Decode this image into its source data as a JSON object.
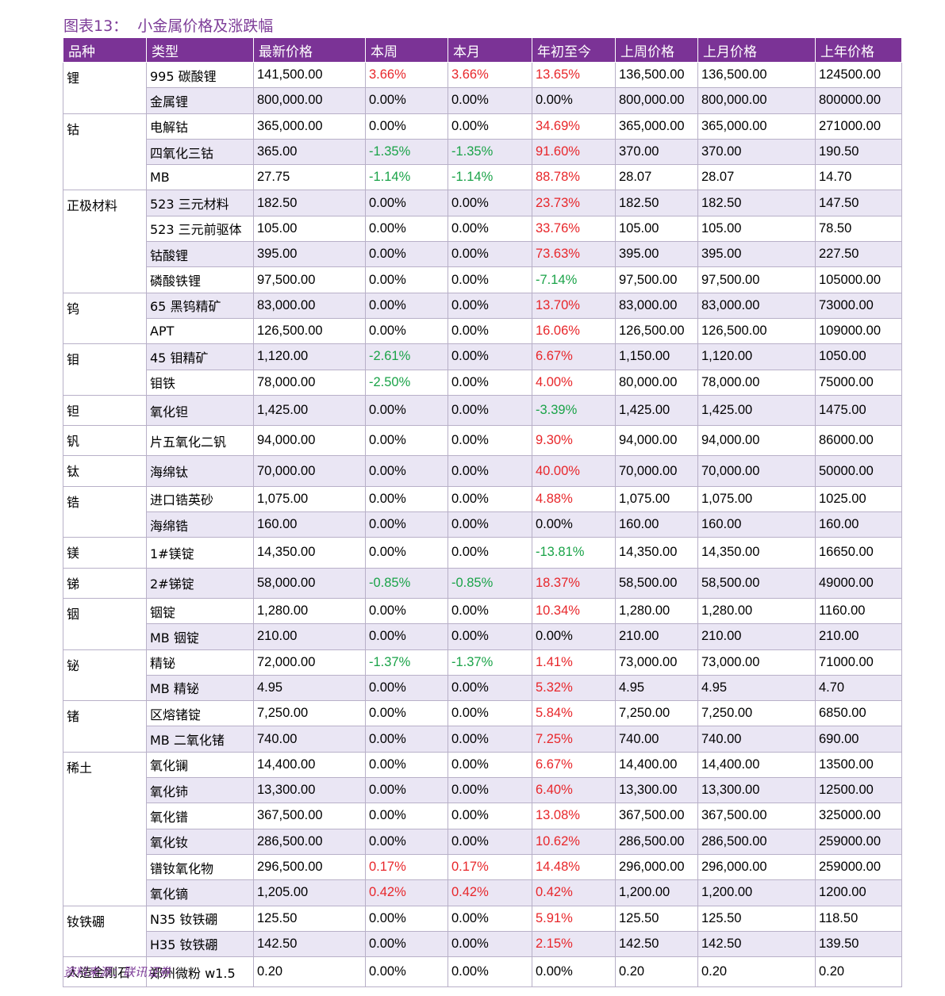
{
  "title": "图表13：  小金属价格及涨跌幅",
  "source": "资料来源：联讯证券",
  "headers": [
    "品种",
    "类型",
    "最新价格",
    "本周",
    "本月",
    "年初至今",
    "上周价格",
    "上月价格",
    "上年价格"
  ],
  "colors": {
    "header_bg": "#7b3396",
    "up": "#e8262a",
    "down": "#1aa348",
    "alt_row": "#eae6f4"
  },
  "groups": [
    {
      "category": "锂",
      "rows": [
        [
          "995 碳酸锂",
          "141,500.00",
          "3.66%",
          "3.66%",
          "13.65%",
          "136,500.00",
          "136,500.00",
          "124500.00"
        ],
        [
          "金属锂",
          "800,000.00",
          "0.00%",
          "0.00%",
          "0.00%",
          "800,000.00",
          "800,000.00",
          "800000.00"
        ]
      ]
    },
    {
      "category": "钴",
      "rows": [
        [
          "电解钴",
          "365,000.00",
          "0.00%",
          "0.00%",
          "34.69%",
          "365,000.00",
          "365,000.00",
          "271000.00"
        ],
        [
          "四氧化三钴",
          "365.00",
          "-1.35%",
          "-1.35%",
          "91.60%",
          "370.00",
          "370.00",
          "190.50"
        ],
        [
          "MB",
          "27.75",
          "-1.14%",
          "-1.14%",
          "88.78%",
          "28.07",
          "28.07",
          "14.70"
        ]
      ]
    },
    {
      "category": "正极材料",
      "rows": [
        [
          "523 三元材料",
          "182.50",
          "0.00%",
          "0.00%",
          "23.73%",
          "182.50",
          "182.50",
          "147.50"
        ],
        [
          "523 三元前驱体",
          "105.00",
          "0.00%",
          "0.00%",
          "33.76%",
          "105.00",
          "105.00",
          "78.50"
        ],
        [
          "钴酸锂",
          "395.00",
          "0.00%",
          "0.00%",
          "73.63%",
          "395.00",
          "395.00",
          "227.50"
        ],
        [
          "磷酸铁锂",
          "97,500.00",
          "0.00%",
          "0.00%",
          "-7.14%",
          "97,500.00",
          "97,500.00",
          "105000.00"
        ]
      ]
    },
    {
      "category": "钨",
      "rows": [
        [
          "65 黑钨精矿",
          "83,000.00",
          "0.00%",
          "0.00%",
          "13.70%",
          "83,000.00",
          "83,000.00",
          "73000.00"
        ],
        [
          "APT",
          "126,500.00",
          "0.00%",
          "0.00%",
          "16.06%",
          "126,500.00",
          "126,500.00",
          "109000.00"
        ]
      ]
    },
    {
      "category": "钼",
      "rows": [
        [
          "45 钼精矿",
          "1,120.00",
          "-2.61%",
          "0.00%",
          "6.67%",
          "1,150.00",
          "1,120.00",
          "1050.00"
        ],
        [
          "钼铁",
          "78,000.00",
          "-2.50%",
          "0.00%",
          "4.00%",
          "80,000.00",
          "78,000.00",
          "75000.00"
        ]
      ]
    },
    {
      "category": "钽",
      "rows": [
        [
          "氧化钽",
          "1,425.00",
          "0.00%",
          "0.00%",
          "-3.39%",
          "1,425.00",
          "1,425.00",
          "1475.00"
        ]
      ]
    },
    {
      "category": "钒",
      "rows": [
        [
          "片五氧化二钒",
          "94,000.00",
          "0.00%",
          "0.00%",
          "9.30%",
          "94,000.00",
          "94,000.00",
          "86000.00"
        ]
      ]
    },
    {
      "category": "钛",
      "rows": [
        [
          "海绵钛",
          "70,000.00",
          "0.00%",
          "0.00%",
          "40.00%",
          "70,000.00",
          "70,000.00",
          "50000.00"
        ]
      ]
    },
    {
      "category": "锆",
      "rows": [
        [
          "进口锆英砂",
          "1,075.00",
          "0.00%",
          "0.00%",
          "4.88%",
          "1,075.00",
          "1,075.00",
          "1025.00"
        ],
        [
          "海绵锆",
          "160.00",
          "0.00%",
          "0.00%",
          "0.00%",
          "160.00",
          "160.00",
          "160.00"
        ]
      ]
    },
    {
      "category": "镁",
      "rows": [
        [
          "1#镁锭",
          "14,350.00",
          "0.00%",
          "0.00%",
          "-13.81%",
          "14,350.00",
          "14,350.00",
          "16650.00"
        ]
      ]
    },
    {
      "category": "锑",
      "rows": [
        [
          "2#锑锭",
          "58,000.00",
          "-0.85%",
          "-0.85%",
          "18.37%",
          "58,500.00",
          "58,500.00",
          "49000.00"
        ]
      ]
    },
    {
      "category": "铟",
      "rows": [
        [
          "铟锭",
          "1,280.00",
          "0.00%",
          "0.00%",
          "10.34%",
          "1,280.00",
          "1,280.00",
          "1160.00"
        ],
        [
          "MB 铟锭",
          "210.00",
          "0.00%",
          "0.00%",
          "0.00%",
          "210.00",
          "210.00",
          "210.00"
        ]
      ]
    },
    {
      "category": "铋",
      "rows": [
        [
          "精铋",
          "72,000.00",
          "-1.37%",
          "-1.37%",
          "1.41%",
          "73,000.00",
          "73,000.00",
          "71000.00"
        ],
        [
          "MB 精铋",
          "4.95",
          "0.00%",
          "0.00%",
          "5.32%",
          "4.95",
          "4.95",
          "4.70"
        ]
      ]
    },
    {
      "category": "锗",
      "rows": [
        [
          "区熔锗锭",
          "7,250.00",
          "0.00%",
          "0.00%",
          "5.84%",
          "7,250.00",
          "7,250.00",
          "6850.00"
        ],
        [
          "MB 二氧化锗",
          "740.00",
          "0.00%",
          "0.00%",
          "7.25%",
          "740.00",
          "740.00",
          "690.00"
        ]
      ]
    },
    {
      "category": "稀土",
      "rows": [
        [
          "氧化镧",
          "14,400.00",
          "0.00%",
          "0.00%",
          "6.67%",
          "14,400.00",
          "14,400.00",
          "13500.00"
        ],
        [
          "氧化铈",
          "13,300.00",
          "0.00%",
          "0.00%",
          "6.40%",
          "13,300.00",
          "13,300.00",
          "12500.00"
        ],
        [
          "氧化镨",
          "367,500.00",
          "0.00%",
          "0.00%",
          "13.08%",
          "367,500.00",
          "367,500.00",
          "325000.00"
        ],
        [
          "氧化钕",
          "286,500.00",
          "0.00%",
          "0.00%",
          "10.62%",
          "286,500.00",
          "286,500.00",
          "259000.00"
        ],
        [
          "镨钕氧化物",
          "296,500.00",
          "0.17%",
          "0.17%",
          "14.48%",
          "296,000.00",
          "296,000.00",
          "259000.00"
        ],
        [
          "氧化镝",
          "1,205.00",
          "0.42%",
          "0.42%",
          "0.42%",
          "1,200.00",
          "1,200.00",
          "1200.00"
        ]
      ]
    },
    {
      "category": "钕铁硼",
      "rows": [
        [
          "N35 钕铁硼",
          "125.50",
          "0.00%",
          "0.00%",
          "5.91%",
          "125.50",
          "125.50",
          "118.50"
        ],
        [
          "H35 钕铁硼",
          "142.50",
          "0.00%",
          "0.00%",
          "2.15%",
          "142.50",
          "142.50",
          "139.50"
        ]
      ]
    },
    {
      "category": "人造金刚石",
      "rows": [
        [
          "郑州微粉 w1.5",
          "0.20",
          "0.00%",
          "0.00%",
          "0.00%",
          "0.20",
          "0.20",
          "0.20"
        ]
      ]
    }
  ]
}
